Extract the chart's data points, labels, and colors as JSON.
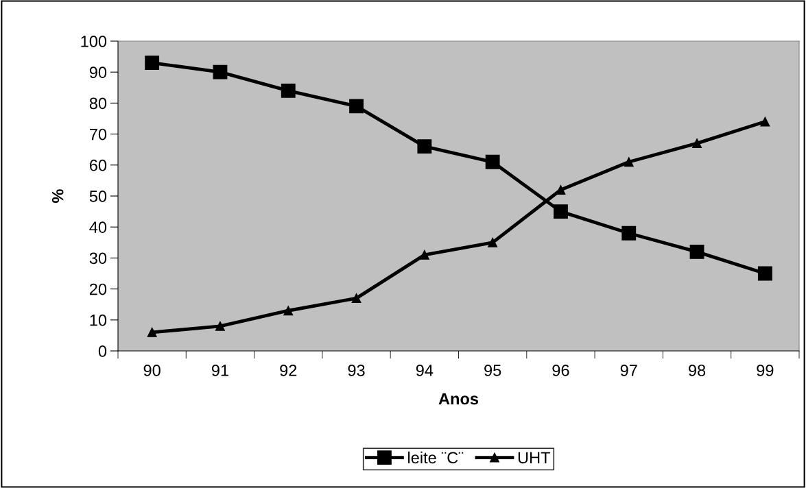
{
  "chart_data": {
    "type": "line",
    "xlabel": "Anos",
    "ylabel": "%",
    "categories": [
      "90",
      "91",
      "92",
      "93",
      "94",
      "95",
      "96",
      "97",
      "98",
      "99"
    ],
    "series": [
      {
        "name": "leite ¨C¨",
        "color": "#000000",
        "marker": "square",
        "values": [
          93,
          90,
          84,
          79,
          66,
          61,
          45,
          38,
          32,
          25
        ]
      },
      {
        "name": "UHT",
        "color": "#000000",
        "marker": "triangle",
        "values": [
          6,
          8,
          13,
          17,
          31,
          35,
          52,
          61,
          67,
          74
        ]
      }
    ],
    "ylim": [
      0,
      100
    ],
    "yticks": [
      0,
      10,
      20,
      30,
      40,
      50,
      60,
      70,
      80,
      90,
      100
    ],
    "grid": false,
    "legend": "bottom",
    "line_style": "solid"
  }
}
